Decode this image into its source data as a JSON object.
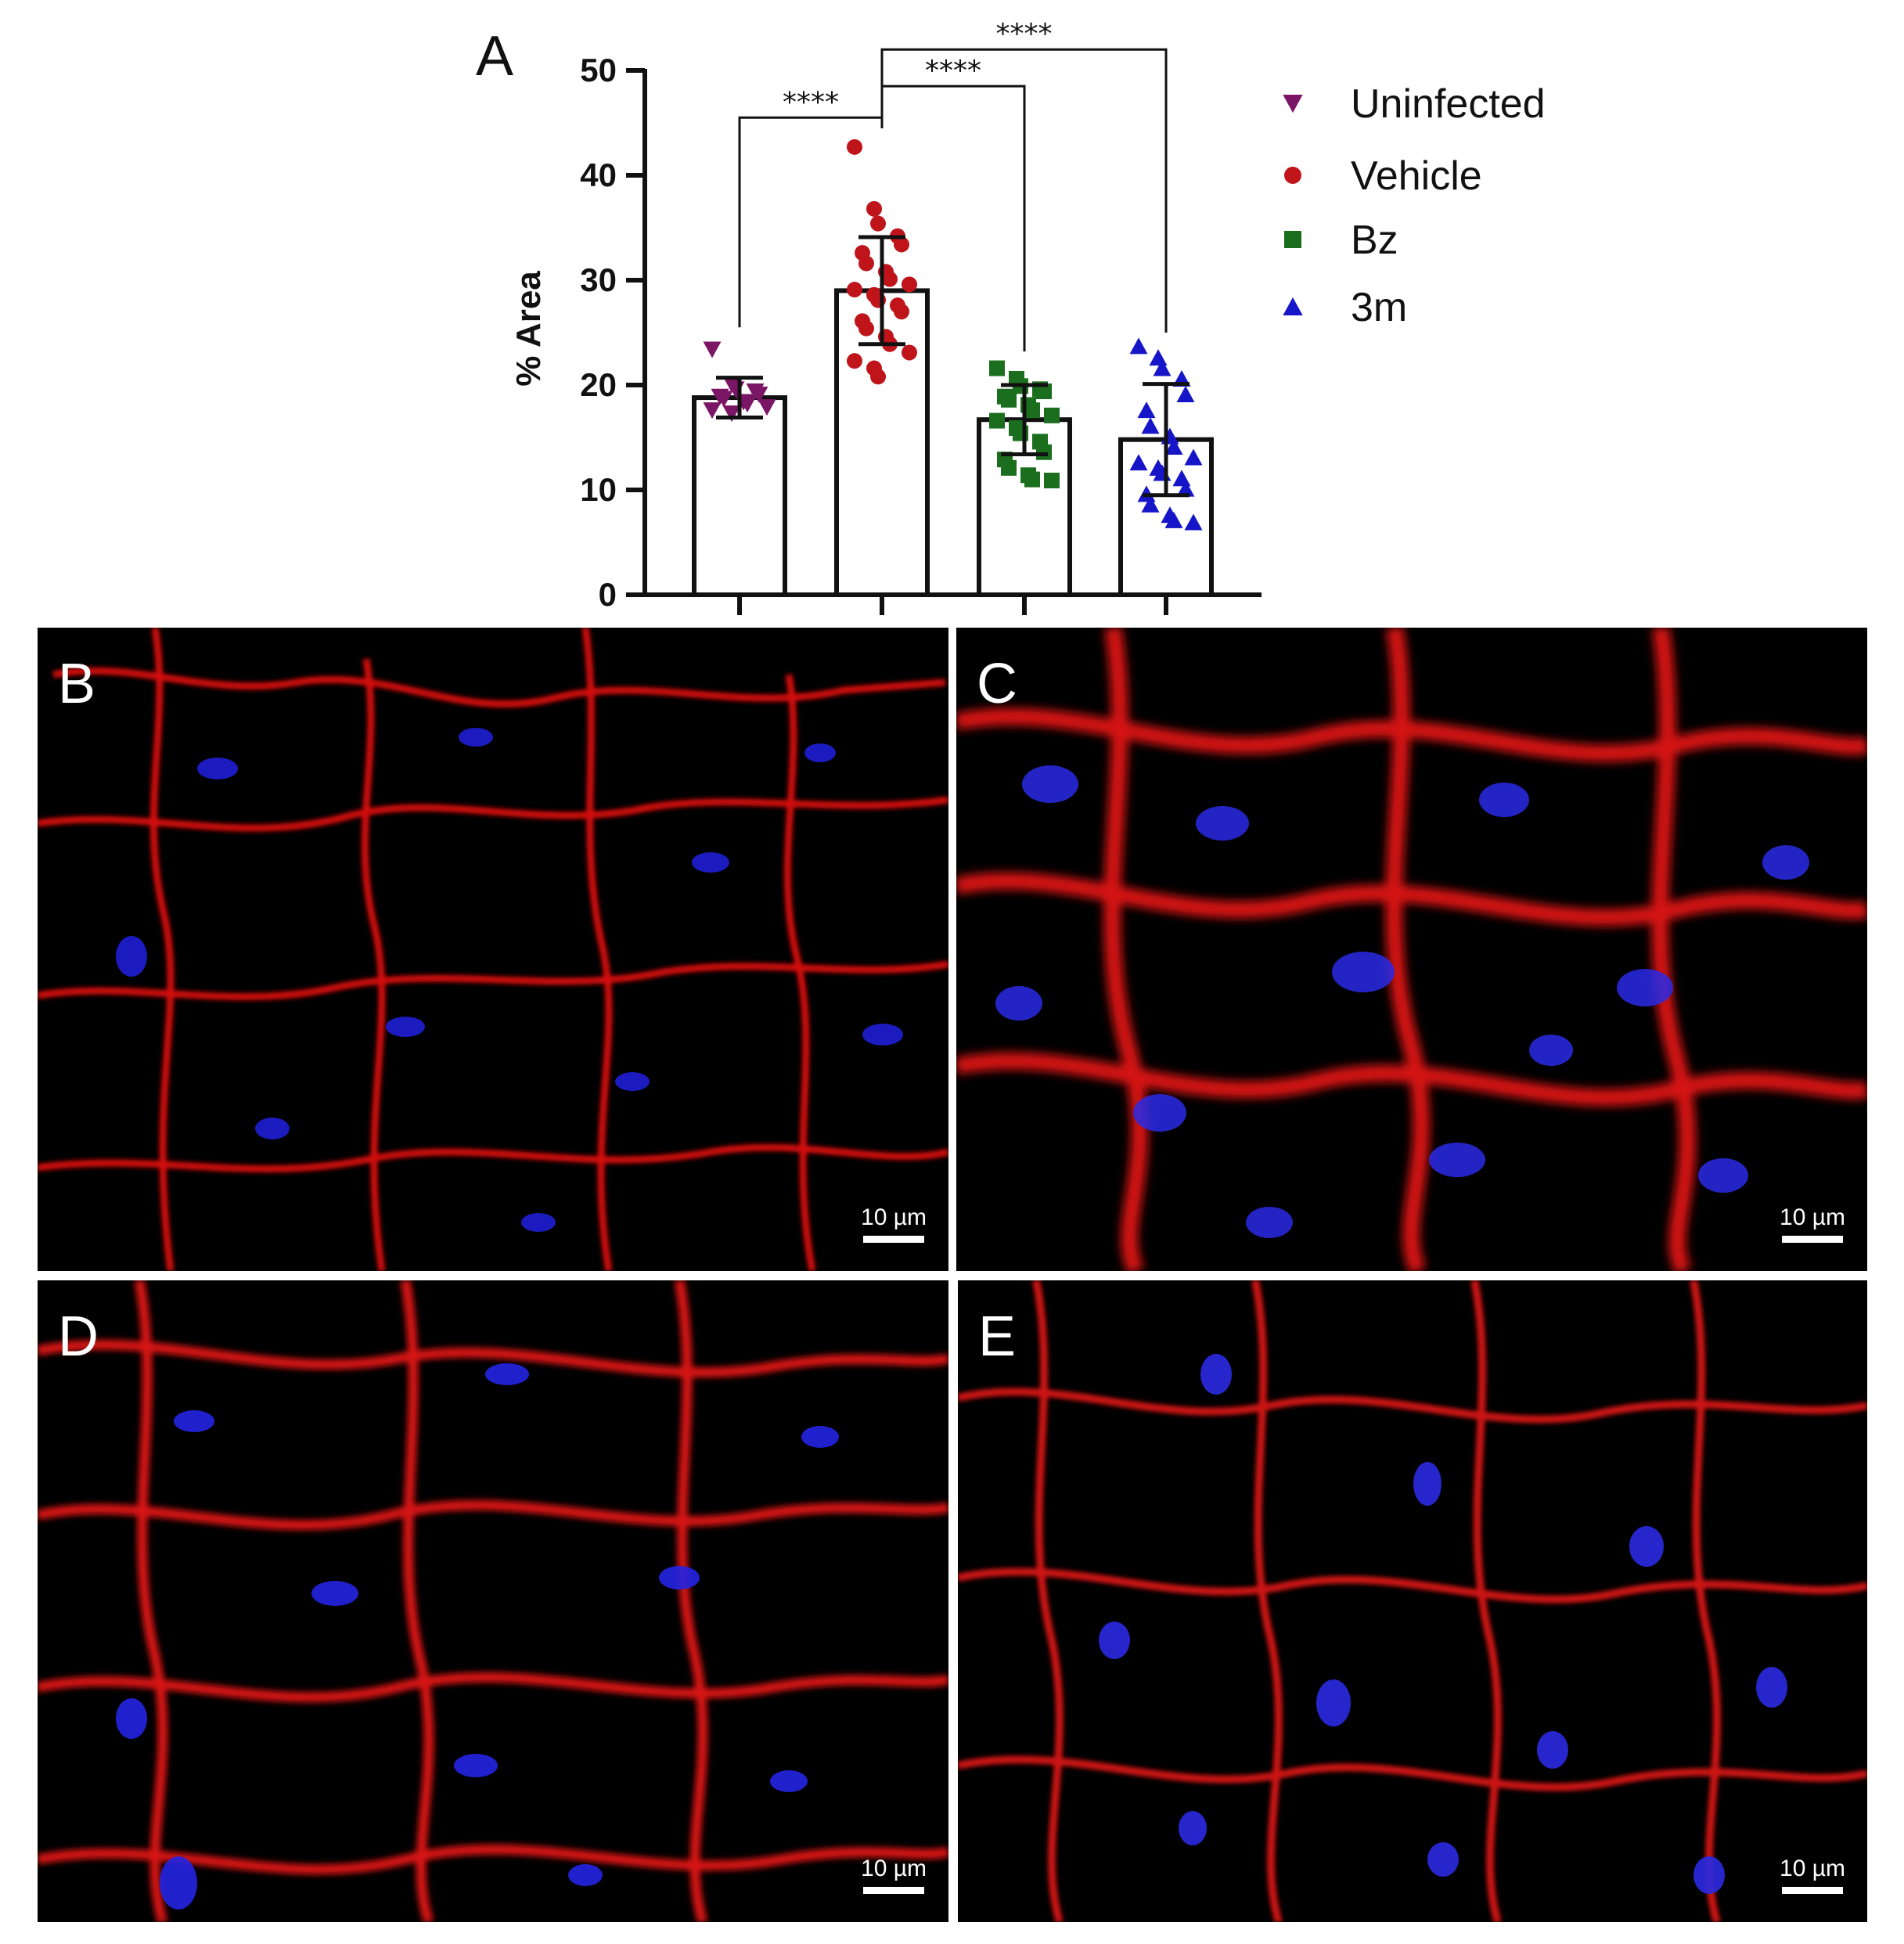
{
  "chart_data": {
    "type": "bar",
    "panel_label": "A",
    "ylabel": "% Area",
    "ylim": [
      0,
      50
    ],
    "yticks": [
      "0",
      "10",
      "20",
      "30",
      "40",
      "50"
    ],
    "categories": [
      "Uninfected",
      "Vehicle",
      "Bz",
      "3m"
    ],
    "means": [
      18.8,
      29.0,
      16.7,
      14.8
    ],
    "sd": [
      1.9,
      5.1,
      3.3,
      5.3
    ],
    "colors": [
      "#7b1566",
      "#c0141b",
      "#1a6e1e",
      "#1616c8"
    ],
    "markers": [
      "triangle-down",
      "circle",
      "square",
      "triangle-up"
    ],
    "legend": [
      "Uninfected",
      "Vehicle",
      "Bz",
      "3m"
    ],
    "legend_position": "right",
    "points": [
      [
        23.4,
        20.1,
        19.6,
        19.4,
        19.1,
        18.9,
        18.7,
        18.4,
        18.2,
        17.9,
        17.6,
        17.3
      ],
      [
        42.7,
        36.8,
        35.4,
        34.2,
        33.4,
        32.6,
        31.6,
        30.8,
        30.1,
        29.6,
        29.1,
        28.6,
        28.1,
        27.6,
        27.0,
        26.1,
        25.4,
        24.6,
        23.9,
        23.1,
        22.3,
        21.6,
        20.8
      ],
      [
        21.6,
        20.6,
        19.9,
        19.6,
        19.4,
        18.9,
        18.6,
        18.1,
        17.6,
        17.1,
        16.6,
        15.9,
        15.4,
        14.6,
        13.6,
        12.9,
        12.1,
        11.4,
        11.0,
        10.9
      ],
      [
        23.7,
        22.6,
        21.6,
        20.6,
        19.1,
        17.6,
        16.1,
        15.1,
        14.1,
        13.1,
        12.6,
        12.1,
        11.6,
        11.1,
        10.1,
        9.6,
        8.6,
        7.6,
        7.1,
        6.9
      ]
    ],
    "significance": [
      {
        "from": 0,
        "to": 1,
        "label": "****",
        "y": 45.5
      },
      {
        "from": 1,
        "to": 2,
        "label": "****",
        "y": 48.5
      },
      {
        "from": 1,
        "to": 3,
        "label": "****",
        "y": 52.0
      }
    ]
  },
  "panels": [
    {
      "letter": "B",
      "scale": "10 µm"
    },
    {
      "letter": "C",
      "scale": "10 µm"
    },
    {
      "letter": "D",
      "scale": "10 µm"
    },
    {
      "letter": "E",
      "scale": "10 µm"
    }
  ]
}
